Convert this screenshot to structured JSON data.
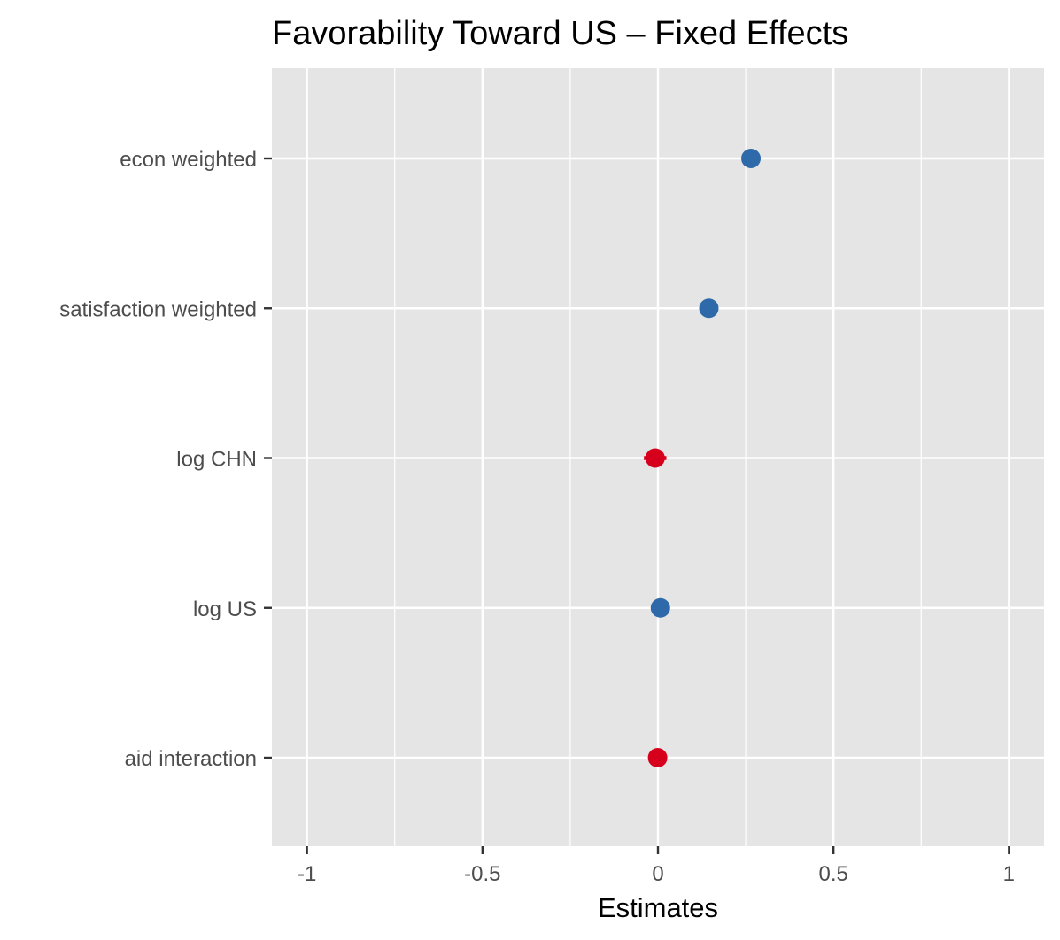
{
  "chart_data": {
    "type": "scatter",
    "title": "Favorability Toward US – Fixed Effects",
    "xlabel": "Estimates",
    "ylabel": "",
    "xlim": [
      -1.1,
      1.1
    ],
    "x_ticks": [
      {
        "value": -1,
        "label": "-1"
      },
      {
        "value": -0.5,
        "label": "-0.5"
      },
      {
        "value": 0,
        "label": "0"
      },
      {
        "value": 0.5,
        "label": "0.5"
      },
      {
        "value": 1,
        "label": "1"
      }
    ],
    "x_minor_grid": [
      -0.75,
      -0.25,
      0.25,
      0.75
    ],
    "grid": true,
    "legend": "none",
    "panel_color": "#e5e5e5",
    "grid_color": "#ffffff",
    "positive_color": "#2e6aa9",
    "negative_color": "#d7001c",
    "categories": [
      "econ weighted",
      "satisfaction weighted",
      "log CHN",
      "log US",
      "aid interaction"
    ],
    "points": [
      {
        "term": "econ weighted",
        "estimate": 0.265,
        "ci_low": 0.255,
        "ci_high": 0.275,
        "sign": "positive"
      },
      {
        "term": "satisfaction weighted",
        "estimate": 0.145,
        "ci_low": 0.137,
        "ci_high": 0.153,
        "sign": "positive"
      },
      {
        "term": "log CHN",
        "estimate": -0.008,
        "ci_low": -0.04,
        "ci_high": 0.024,
        "sign": "negative"
      },
      {
        "term": "log US",
        "estimate": 0.007,
        "ci_low": -0.004,
        "ci_high": 0.018,
        "sign": "positive"
      },
      {
        "term": "aid interaction",
        "estimate": -0.001,
        "ci_low": -0.008,
        "ci_high": 0.006,
        "sign": "negative"
      }
    ]
  }
}
